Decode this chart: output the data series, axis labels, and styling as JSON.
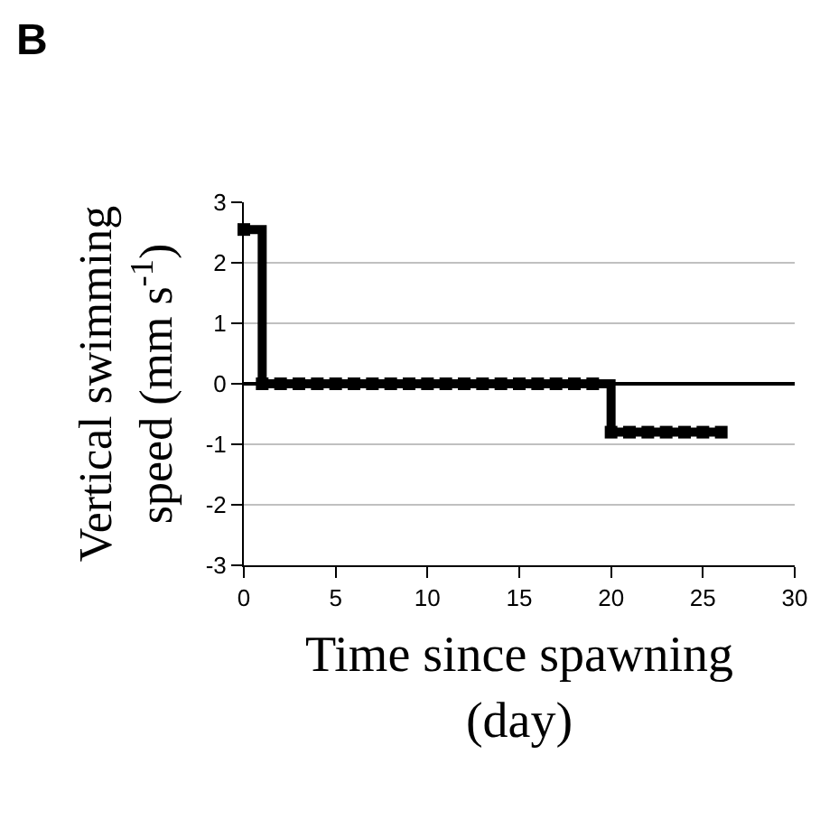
{
  "chart_data": {
    "type": "step",
    "title": "B",
    "xlabel": "Time since spawning (day)",
    "ylabel": "Vertical swimming speed (mm s$^{-1}$)",
    "x": [
      0,
      1,
      2,
      3,
      4,
      5,
      6,
      7,
      8,
      9,
      10,
      11,
      12,
      13,
      14,
      15,
      16,
      17,
      18,
      19,
      20,
      21,
      22,
      23,
      24,
      25,
      26
    ],
    "series": [
      {
        "color": "#000000",
        "values": [
          2.55,
          0,
          0,
          0,
          0,
          0,
          0,
          0,
          0,
          0,
          0,
          0,
          0,
          0,
          0,
          0,
          0,
          0,
          0,
          0,
          -0.8,
          -0.8,
          -0.8,
          -0.8,
          -0.8,
          -0.8,
          -0.8
        ]
      }
    ],
    "xlim": [
      0,
      30
    ],
    "xticks": [
      0,
      5,
      10,
      15,
      20,
      25,
      30
    ],
    "ylim": [
      -3,
      3
    ],
    "yticks": [
      -3,
      -2,
      -1,
      0,
      1,
      2,
      3
    ],
    "grid": "y",
    "marker": "square",
    "line_style": "solid"
  }
}
